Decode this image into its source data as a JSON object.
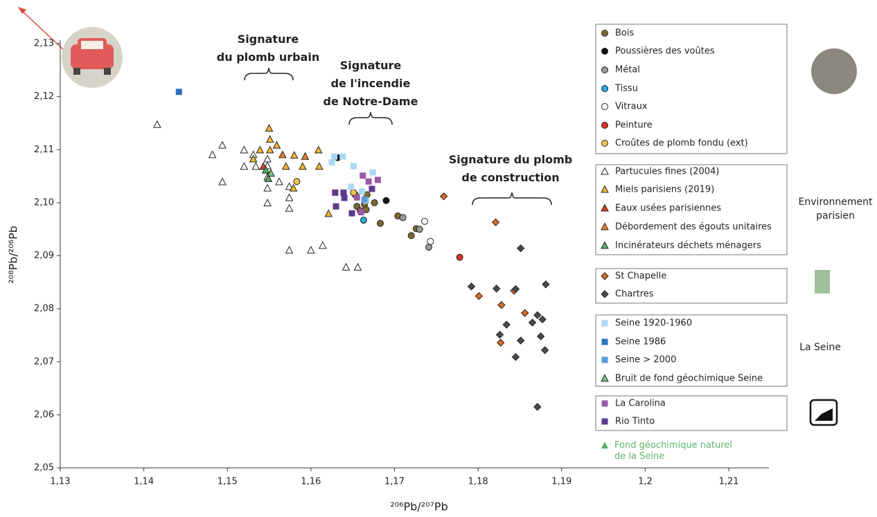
{
  "chart_data": {
    "type": "scatter",
    "x_label": "²⁰⁶Pb/²⁰⁷Pb",
    "y_label": "²⁰⁸Pb/²⁰⁶Pb",
    "xlim": [
      1.13,
      1.215
    ],
    "ylim": [
      2.05,
      2.13
    ],
    "xticks": [
      {
        "value": 1.13,
        "label": "1,13"
      },
      {
        "value": 1.14,
        "label": "1,14"
      },
      {
        "value": 1.15,
        "label": "1,15"
      },
      {
        "value": 1.16,
        "label": "1,16"
      },
      {
        "value": 1.17,
        "label": "1,17"
      },
      {
        "value": 1.18,
        "label": "1,18"
      },
      {
        "value": 1.19,
        "label": "1,19"
      },
      {
        "value": 1.2,
        "label": "1,2"
      },
      {
        "value": 1.21,
        "label": "1,21"
      }
    ],
    "yticks": [
      {
        "value": 2.05,
        "label": "2,05"
      },
      {
        "value": 2.06,
        "label": "2,06"
      },
      {
        "value": 2.07,
        "label": "2,07"
      },
      {
        "value": 2.08,
        "label": "2,08"
      },
      {
        "value": 2.09,
        "label": "2,09"
      },
      {
        "value": 2.1,
        "label": "2,10"
      },
      {
        "value": 2.11,
        "label": "2,11"
      },
      {
        "value": 2.12,
        "label": "2,12"
      },
      {
        "value": 2.13,
        "label": "2,13"
      }
    ],
    "annotations": [
      "Signature\ndu plomb urbain",
      "Signature\nde l'incendie\nde Notre-Dame",
      "Signature du plomb\nde construction"
    ],
    "group_labels": [
      "Environnement\nparisien",
      "La Seine"
    ],
    "series": [
      {
        "name": "Bois",
        "marker": "circle",
        "color": "#7a6a2e",
        "x": [
          1.1653,
          1.1655,
          1.1664,
          1.1666,
          1.1676,
          1.1667,
          1.1683,
          1.1704,
          1.172,
          1.1726,
          1.1659
        ],
        "y": [
          2.1015,
          2.0993,
          2.0997,
          2.0987,
          2.1,
          2.1015,
          2.0961,
          2.0975,
          2.0938,
          2.0951,
          2.0985
        ]
      },
      {
        "name": "Poussières des voûtes",
        "marker": "circle",
        "color": "#111111",
        "x": [
          1.169,
          1.1632
        ],
        "y": [
          2.1004,
          2.1085
        ]
      },
      {
        "name": "Métal",
        "marker": "circle",
        "color": "#9a9a9a",
        "x": [
          1.171,
          1.173,
          1.1741
        ],
        "y": [
          2.0972,
          2.095,
          2.0916
        ]
      },
      {
        "name": "Tissu",
        "marker": "circle",
        "color": "#2aa8e0",
        "x": [
          1.1663
        ],
        "y": [
          2.0967
        ]
      },
      {
        "name": "Vitraux",
        "marker": "circle",
        "color": "#ffffff",
        "x": [
          1.1736,
          1.1743
        ],
        "y": [
          2.0965,
          2.0927
        ]
      },
      {
        "name": "Peinture",
        "marker": "circle",
        "color": "#d9332b",
        "x": [
          1.1778
        ],
        "y": [
          2.0897
        ]
      },
      {
        "name": "Croûtes de plomb fondu (ext)",
        "marker": "circle",
        "color": "#f2c44a",
        "x": [
          1.1583,
          1.1651
        ],
        "y": [
          2.104,
          2.1019
        ]
      },
      {
        "name": "Partucules fines (2004)",
        "marker": "triangle",
        "color": "#ffffff",
        "x": [
          1.1416,
          1.1482,
          1.1494,
          1.1494,
          1.152,
          1.152,
          1.1531,
          1.1534,
          1.1548,
          1.1548,
          1.1548,
          1.1548,
          1.1548,
          1.1562,
          1.1574,
          1.1574,
          1.1574,
          1.1574,
          1.16,
          1.1614,
          1.1642,
          1.1656
        ],
        "y": [
          2.1147,
          2.109,
          2.1108,
          2.1039,
          2.1099,
          2.1068,
          2.109,
          2.1068,
          2.1082,
          2.1069,
          2.1048,
          2.1027,
          2.0999,
          2.1039,
          2.103,
          2.1009,
          2.0989,
          2.091,
          2.091,
          2.0919,
          2.0878,
          2.0878
        ]
      },
      {
        "name": "Miels parisiens (2019)",
        "marker": "triangle",
        "color": "#f2b632",
        "x": [
          1.155,
          1.1551,
          1.1551,
          1.1539,
          1.1531,
          1.1559,
          1.158,
          1.157,
          1.1579,
          1.159,
          1.1609,
          1.161,
          1.1621
        ],
        "y": [
          2.114,
          2.1119,
          2.1099,
          2.1099,
          2.1082,
          2.1108,
          2.1089,
          2.1068,
          2.1027,
          2.1068,
          2.1099,
          2.1068,
          2.0979
        ]
      },
      {
        "name": "Eaux usées parisiennes",
        "marker": "triangle",
        "color": "#e03a2f",
        "x": [
          1.1543
        ],
        "y": [
          2.1068
        ]
      },
      {
        "name": "Débordement des égouts unitaires",
        "marker": "triangle",
        "color": "#ee7d33",
        "x": [
          1.1566,
          1.1593
        ],
        "y": [
          2.109,
          2.1087
        ]
      },
      {
        "name": "Incinérateurs déchets ménagers",
        "marker": "triangle",
        "color": "#4fae5f",
        "x": [
          1.1546
        ],
        "y": [
          2.1061
        ]
      },
      {
        "name": "St Chapelle",
        "marker": "diamond",
        "color": "#e06a2a",
        "x": [
          1.1759,
          1.1821,
          1.1801,
          1.1828,
          1.1843,
          1.1856,
          1.1827
        ],
        "y": [
          2.1012,
          2.0963,
          2.0824,
          2.0807,
          2.0834,
          2.0792,
          2.0736
        ]
      },
      {
        "name": "Chartres",
        "marker": "diamond",
        "color": "#4a4a4a",
        "x": [
          1.1792,
          1.1822,
          1.1845,
          1.1851,
          1.1881,
          1.1834,
          1.1865,
          1.1826,
          1.1851,
          1.1871,
          1.1877,
          1.1875,
          1.188,
          1.1845,
          1.1871
        ],
        "y": [
          2.0842,
          2.0838,
          2.0837,
          2.0914,
          2.0846,
          2.077,
          2.0774,
          2.0751,
          2.074,
          2.0788,
          2.078,
          2.0748,
          2.0722,
          2.0709,
          2.0615
        ]
      },
      {
        "name": "Seine 1920-1960",
        "marker": "square",
        "color": "#a9d8f2",
        "x": [
          1.1628,
          1.1638,
          1.1625,
          1.1651,
          1.1674,
          1.1648,
          1.1661,
          1.1666
        ],
        "y": [
          2.1087,
          2.1087,
          2.1076,
          2.1069,
          2.1057,
          2.103,
          2.1021,
          2.1004
        ]
      },
      {
        "name": "Seine 1986",
        "marker": "square",
        "color": "#2f6fc0",
        "x": [
          1.1442
        ],
        "y": [
          2.1209
        ]
      },
      {
        "name": "Seine > 2000",
        "marker": "square",
        "color": "#5a9bd8",
        "x": [
          1.1664
        ],
        "y": [
          2.1006
        ]
      },
      {
        "name": "Bruit de fond géochimique Seine",
        "marker": "triangle",
        "color": "#7cc47f",
        "x": [
          1.1552
        ],
        "y": [
          2.1055
        ]
      },
      {
        "name": "La Carolina",
        "marker": "square",
        "color": "#9b59a8",
        "x": [
          1.1662,
          1.1669,
          1.168,
          1.1655,
          1.166
        ],
        "y": [
          2.1051,
          2.104,
          2.1043,
          2.101,
          2.0982
        ]
      },
      {
        "name": "Rio Tinto",
        "marker": "square",
        "color": "#5b3a8c",
        "x": [
          1.1629,
          1.1639,
          1.164,
          1.1649,
          1.163,
          1.1673
        ],
        "y": [
          2.1019,
          2.1019,
          2.1009,
          2.098,
          2.0993,
          2.1026
        ]
      },
      {
        "name": "Fond géochimique naturel\nde la Seine",
        "marker": "triangle",
        "color": "#4fae5f",
        "x": [
          1.1549
        ],
        "y": [
          2.1045
        ]
      }
    ]
  }
}
